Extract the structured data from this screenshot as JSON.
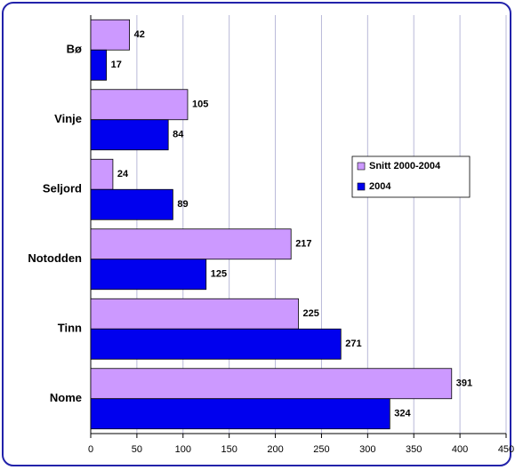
{
  "chart_data": {
    "type": "bar",
    "orientation": "horizontal",
    "categories": [
      "Bø",
      "Vinje",
      "Seljord",
      "Notodden",
      "Tinn",
      "Nome"
    ],
    "series": [
      {
        "name": "Snitt 2000-2004",
        "color": "#cc99ff",
        "values": [
          42,
          105,
          24,
          217,
          225,
          391
        ]
      },
      {
        "name": "2004",
        "color": "#0000ee",
        "values": [
          17,
          84,
          89,
          125,
          271,
          324
        ]
      }
    ],
    "xlim": [
      0,
      450
    ],
    "xticks": [
      0,
      50,
      100,
      150,
      200,
      250,
      300,
      350,
      400,
      450
    ],
    "grid": true,
    "legend": "right"
  }
}
